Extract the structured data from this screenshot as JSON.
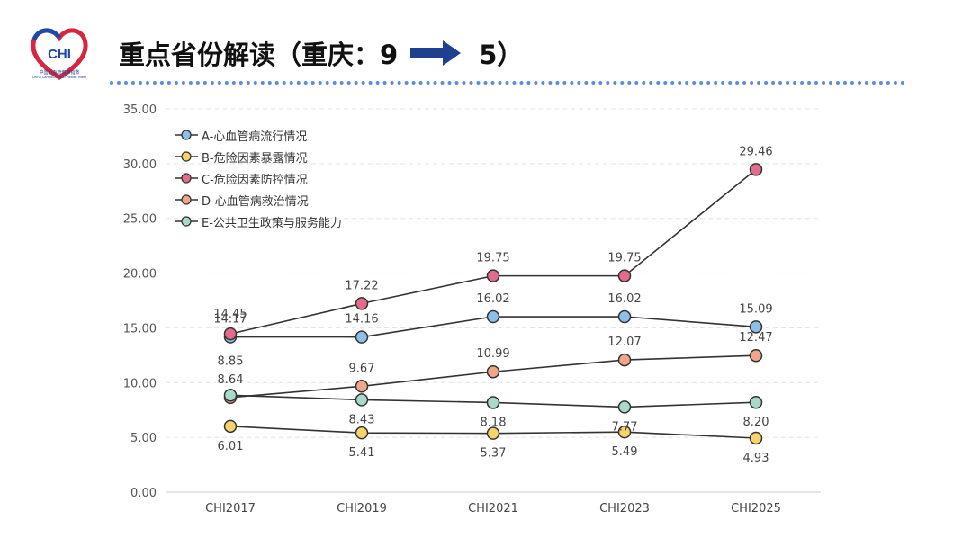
{
  "header": {
    "logo_text": "CHI",
    "logo_caption_cn": "中国心血管健康指数",
    "logo_caption_en": "China Cardiovascular Health Index",
    "title_prefix": "重点省份解读（重庆：9",
    "title_suffix": "5）"
  },
  "colors": {
    "arrow": "#1f3f8f",
    "divider": "#5b8fdc",
    "line": "#333333",
    "A": "#8fbfe6",
    "B": "#f7d36b",
    "C": "#e36c8c",
    "D": "#f0a58c",
    "E": "#a9d9c8"
  },
  "chart_data": {
    "type": "line",
    "categories": [
      "CHI2017",
      "CHI2019",
      "CHI2021",
      "CHI2023",
      "CHI2025"
    ],
    "y_ticks": [
      "0.00",
      "5.00",
      "10.00",
      "15.00",
      "20.00",
      "25.00",
      "30.00",
      "35.00"
    ],
    "ylim": [
      0,
      35
    ],
    "grid": "horizontal dashed",
    "legend_position": "top-left",
    "series": [
      {
        "key": "A",
        "name": "A-心血管病流行情况",
        "values": [
          14.17,
          14.16,
          16.02,
          16.02,
          15.09
        ],
        "labels": [
          "14.17",
          "14.16",
          "16.02",
          "16.02",
          "15.09"
        ]
      },
      {
        "key": "B",
        "name": "B-危险因素暴露情况",
        "values": [
          6.01,
          5.41,
          5.37,
          5.49,
          4.93
        ],
        "labels": [
          "6.01",
          "5.41",
          "5.37",
          "5.49",
          "4.93"
        ]
      },
      {
        "key": "C",
        "name": "C-危险因素防控情况",
        "values": [
          14.45,
          17.22,
          19.75,
          19.75,
          29.46
        ],
        "labels": [
          "14.45",
          "17.22",
          "19.75",
          "19.75",
          "29.46"
        ]
      },
      {
        "key": "D",
        "name": "D-心血管病救治情况",
        "values": [
          8.64,
          9.67,
          10.99,
          12.07,
          12.47
        ],
        "labels": [
          "8.64",
          "9.67",
          "10.99",
          "12.07",
          "12.47"
        ]
      },
      {
        "key": "E",
        "name": "E-公共卫生政策与服务能力",
        "values": [
          8.85,
          8.43,
          8.18,
          7.77,
          8.2
        ],
        "labels": [
          "8.85",
          "8.43",
          "8.18",
          "7.77",
          "8.20"
        ]
      }
    ]
  }
}
